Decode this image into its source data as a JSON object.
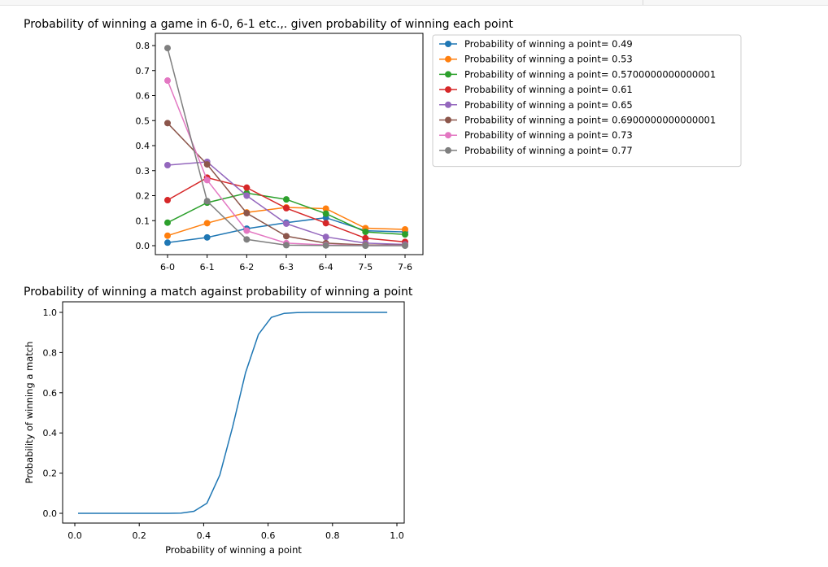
{
  "figure1": {
    "title": "Probability of winning a game in 6-0, 6-1 etc.,. given probability of winning each point",
    "chart_data": {
      "type": "line",
      "categories": [
        "6-0",
        "6-1",
        "6-2",
        "6-3",
        "6-4",
        "7-5",
        "7-6"
      ],
      "ylim": [
        -0.02,
        0.82
      ],
      "yticks": [
        0.0,
        0.1,
        0.2,
        0.3,
        0.4,
        0.5,
        0.6,
        0.7,
        0.8
      ],
      "ytick_labels": [
        "0.0",
        "0.1",
        "0.2",
        "0.3",
        "0.4",
        "0.5",
        "0.6",
        "0.7",
        "0.8"
      ],
      "grid": false,
      "legend_position": "outside right, top",
      "series": [
        {
          "name": "Probability of winning a point= 0.49",
          "color": "#1f77b4",
          "values": [
            0.012,
            0.033,
            0.068,
            0.092,
            0.112,
            0.06,
            0.055
          ]
        },
        {
          "name": "Probability of winning a point= 0.53",
          "color": "#ff7f0e",
          "values": [
            0.04,
            0.09,
            0.133,
            0.153,
            0.148,
            0.07,
            0.065
          ]
        },
        {
          "name": "Probability of winning a point= 0.5700000000000001",
          "color": "#2ca02c",
          "values": [
            0.092,
            0.172,
            0.21,
            0.185,
            0.128,
            0.055,
            0.045
          ]
        },
        {
          "name": "Probability of winning a point= 0.61",
          "color": "#d62728",
          "values": [
            0.182,
            0.272,
            0.232,
            0.15,
            0.09,
            0.03,
            0.015
          ]
        },
        {
          "name": "Probability of winning a point= 0.65",
          "color": "#9467bd",
          "values": [
            0.322,
            0.335,
            0.2,
            0.088,
            0.035,
            0.01,
            0.005
          ]
        },
        {
          "name": "Probability of winning a point= 0.6900000000000001",
          "color": "#8c564b",
          "values": [
            0.49,
            0.325,
            0.13,
            0.038,
            0.01,
            0.003,
            0.002
          ]
        },
        {
          "name": "Probability of winning a point= 0.73",
          "color": "#e377c2",
          "values": [
            0.66,
            0.262,
            0.06,
            0.01,
            0.003,
            0.001,
            0.001
          ]
        },
        {
          "name": "Probability of winning a point= 0.77",
          "color": "#7f7f7f",
          "values": [
            0.79,
            0.178,
            0.025,
            0.002,
            0.001,
            0.0,
            0.0
          ]
        }
      ]
    }
  },
  "figure2": {
    "title": "Probability of winning a match against probability of winning a point",
    "chart_data": {
      "type": "line",
      "xlabel": "Probability of winning a point",
      "ylabel": "Probability of winning a match",
      "xlim": [
        -0.02,
        1.02
      ],
      "ylim": [
        -0.05,
        1.05
      ],
      "xticks": [
        0.0,
        0.2,
        0.4,
        0.6,
        0.8,
        1.0
      ],
      "xtick_labels": [
        "0.0",
        "0.2",
        "0.4",
        "0.6",
        "0.8",
        "1.0"
      ],
      "yticks": [
        0.0,
        0.2,
        0.4,
        0.6,
        0.8,
        1.0
      ],
      "ytick_labels": [
        "0.0",
        "0.2",
        "0.4",
        "0.6",
        "0.8",
        "1.0"
      ],
      "grid": false,
      "series": [
        {
          "color": "#1f77b4",
          "x": [
            0.01,
            0.05,
            0.09,
            0.13,
            0.17,
            0.21,
            0.25,
            0.29,
            0.33,
            0.37,
            0.41,
            0.45,
            0.49,
            0.53,
            0.57,
            0.61,
            0.65,
            0.69,
            0.73,
            0.77,
            0.81,
            0.85,
            0.89,
            0.93,
            0.97
          ],
          "y": [
            0.0,
            0.0,
            0.0,
            0.0,
            0.0,
            0.0,
            0.0,
            0.0,
            0.001,
            0.01,
            0.05,
            0.19,
            0.43,
            0.7,
            0.89,
            0.975,
            0.995,
            0.999,
            1.0,
            1.0,
            1.0,
            1.0,
            1.0,
            1.0,
            1.0
          ]
        }
      ]
    }
  }
}
